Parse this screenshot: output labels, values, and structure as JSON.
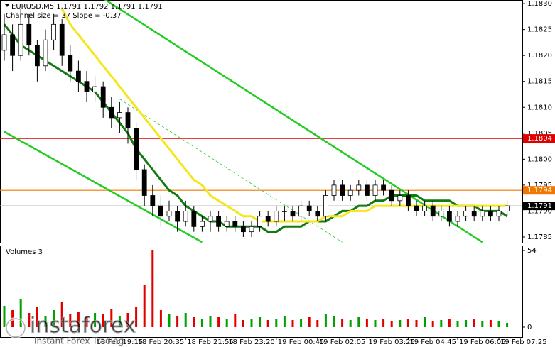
{
  "chart_data": [
    {
      "type": "candlestick",
      "title": "EURUSD,M5  1.1791 1.1792 1.1791 1.1791",
      "subtitle": "Channel size = 37 Slope = -0.37",
      "open": [
        1.1821,
        1.1824,
        1.182,
        1.1826,
        1.1822,
        1.1818,
        1.1823,
        1.1826,
        1.182,
        1.1817,
        1.1815,
        1.1813,
        1.1814,
        1.181,
        1.1808,
        1.1809,
        1.1806,
        1.1798,
        1.1793,
        1.1791,
        1.1789,
        1.179,
        1.1788,
        1.179,
        1.1787,
        1.1788,
        1.1789,
        1.1787,
        1.1788,
        1.1787,
        1.1786,
        1.1787,
        1.1789,
        1.1788,
        1.179,
        1.179,
        1.1789,
        1.1791,
        1.179,
        1.1789,
        1.1793,
        1.1795,
        1.1793,
        1.1794,
        1.1795,
        1.1793,
        1.1795,
        1.1794,
        1.1792,
        1.1793,
        1.1791,
        1.179,
        1.1791,
        1.1789,
        1.179,
        1.1788,
        1.1789,
        1.179,
        1.1789,
        1.179,
        1.1789,
        1.179
      ],
      "high": [
        1.1828,
        1.1826,
        1.1829,
        1.1828,
        1.1823,
        1.1825,
        1.1828,
        1.1827,
        1.1822,
        1.1819,
        1.1817,
        1.1816,
        1.1815,
        1.1812,
        1.1811,
        1.181,
        1.1807,
        1.1799,
        1.1795,
        1.1793,
        1.1792,
        1.1791,
        1.1792,
        1.1791,
        1.1789,
        1.179,
        1.179,
        1.1789,
        1.1789,
        1.1788,
        1.1788,
        1.179,
        1.179,
        1.1791,
        1.1791,
        1.1791,
        1.1792,
        1.1792,
        1.1791,
        1.1794,
        1.1796,
        1.1796,
        1.1795,
        1.1796,
        1.1796,
        1.1796,
        1.1796,
        1.1795,
        1.1794,
        1.1794,
        1.1792,
        1.1792,
        1.1792,
        1.1791,
        1.1791,
        1.179,
        1.1791,
        1.1791,
        1.1791,
        1.1791,
        1.1791,
        1.1792
      ],
      "low": [
        1.1819,
        1.1817,
        1.1819,
        1.182,
        1.1815,
        1.1817,
        1.1821,
        1.1818,
        1.1815,
        1.1813,
        1.1811,
        1.1811,
        1.1808,
        1.1806,
        1.1805,
        1.1803,
        1.1796,
        1.1791,
        1.1789,
        1.1787,
        1.1788,
        1.1786,
        1.1787,
        1.1786,
        1.1786,
        1.1786,
        1.1786,
        1.1786,
        1.1786,
        1.1785,
        1.1785,
        1.1786,
        1.1787,
        1.1787,
        1.1788,
        1.1788,
        1.1788,
        1.1789,
        1.1788,
        1.1788,
        1.1792,
        1.1792,
        1.1792,
        1.1793,
        1.1792,
        1.1792,
        1.1793,
        1.1791,
        1.1791,
        1.179,
        1.1789,
        1.1789,
        1.1788,
        1.1788,
        1.1787,
        1.1787,
        1.1788,
        1.1788,
        1.1788,
        1.1788,
        1.1788,
        1.1789
      ],
      "close": [
        1.1824,
        1.182,
        1.1826,
        1.1822,
        1.1818,
        1.1823,
        1.1826,
        1.182,
        1.1817,
        1.1815,
        1.1813,
        1.1814,
        1.181,
        1.1808,
        1.1809,
        1.1806,
        1.1798,
        1.1793,
        1.1791,
        1.1789,
        1.179,
        1.1788,
        1.179,
        1.1787,
        1.1788,
        1.1789,
        1.1787,
        1.1788,
        1.1787,
        1.1786,
        1.1787,
        1.1789,
        1.1788,
        1.179,
        1.179,
        1.1789,
        1.1791,
        1.179,
        1.1789,
        1.1793,
        1.1795,
        1.1793,
        1.1794,
        1.1795,
        1.1793,
        1.1795,
        1.1794,
        1.1792,
        1.1793,
        1.1791,
        1.179,
        1.1791,
        1.1789,
        1.179,
        1.1788,
        1.1789,
        1.179,
        1.1789,
        1.179,
        1.1789,
        1.179,
        1.1791
      ],
      "up_color": "#00a000",
      "down_color": "#e00000",
      "series": [
        {
          "color": "#107a10",
          "values": [
            1.1826,
            1.1824,
            1.1822,
            1.1821,
            1.182,
            1.1819,
            1.1818,
            1.1817,
            1.1816,
            1.1815,
            1.1814,
            1.1813,
            1.1811,
            1.1809,
            1.1807,
            1.1805,
            1.1802,
            1.18,
            1.1798,
            1.1796,
            1.1794,
            1.1793,
            1.1791,
            1.179,
            1.1789,
            1.1788,
            1.1788,
            1.1787,
            1.1787,
            1.1787,
            1.1787,
            1.1787,
            1.1786,
            1.1786,
            1.1787,
            1.1787,
            1.1787,
            1.1788,
            1.1788,
            1.1788,
            1.1789,
            1.179,
            1.179,
            1.1791,
            1.1791,
            1.1792,
            1.1792,
            1.1793,
            1.1793,
            1.1793,
            1.1793,
            1.1792,
            1.1792,
            1.1792,
            1.1792,
            1.1791,
            1.1791,
            1.1791,
            1.179,
            1.179,
            1.179,
            1.1789
          ]
        },
        {
          "color": "#f5e61a",
          "values": [
            null,
            null,
            null,
            null,
            null,
            null,
            null,
            1.1829,
            1.1826,
            1.1824,
            1.1822,
            1.182,
            1.1818,
            1.1816,
            1.1814,
            1.1812,
            1.181,
            1.1808,
            1.1806,
            1.1804,
            1.1802,
            1.18,
            1.1798,
            1.1796,
            1.1795,
            1.1793,
            1.1792,
            1.1791,
            1.179,
            1.1789,
            1.1789,
            1.1788,
            1.1788,
            1.1788,
            1.1788,
            1.1788,
            1.1788,
            1.1788,
            1.1788,
            1.1789,
            1.1789,
            1.1789,
            1.179,
            1.179,
            1.179,
            1.1791,
            1.1791,
            1.1791,
            1.1791,
            1.1791,
            1.1791,
            1.1791,
            1.1791,
            1.1791,
            1.1791,
            1.1791,
            1.1791,
            1.1791,
            1.1791,
            1.1791,
            1.1791,
            1.1791
          ]
        }
      ],
      "trendlines": [
        {
          "x": [
            12,
            58
          ],
          "values": [
            1.1831,
            1.1784
          ],
          "color": "#22cc22"
        },
        {
          "x": [
            0,
            24
          ],
          "values": [
            1.18053,
            1.1784
          ],
          "color": "#22cc22"
        },
        {
          "x": [
            14,
            41
          ],
          "values": [
            1.18116,
            1.1784
          ],
          "color": "#22cc22",
          "dashed": true
        }
      ],
      "levels": [
        {
          "value": 1.1804,
          "color": "#e00000",
          "box_color": "#e00000"
        },
        {
          "value": 1.1794,
          "color": "#f07800",
          "box_color": "#f07800"
        },
        {
          "value": 1.1791,
          "color": "#b8b8b8",
          "box_color": "#000000"
        }
      ],
      "ylim": [
        1.17839,
        1.18307
      ],
      "yticks": [
        {
          "value": 1.183,
          "label": "1.1830"
        },
        1.1825,
        {
          "value": 1.182,
          "label": "1.1820"
        },
        1.1815,
        {
          "value": 1.181,
          "label": "1.1810"
        },
        1.1805,
        {
          "value": 1.18,
          "label": "1.1800"
        },
        1.1795,
        {
          "value": 1.179,
          "label": "1.1790"
        },
        1.1785
      ]
    },
    {
      "type": "bar",
      "title": "Volumes 3",
      "categories": [
        null,
        null,
        null,
        null,
        null,
        null,
        null,
        null,
        null,
        null,
        null,
        "18 Feb 19:15",
        null,
        null,
        null,
        null,
        "18 Feb 20:35",
        null,
        null,
        null,
        null,
        null,
        "18 Feb 21:55",
        null,
        null,
        null,
        null,
        "18 Feb 23:20",
        null,
        null,
        null,
        null,
        null,
        "19 Feb 00:45",
        null,
        null,
        null,
        null,
        "19 Feb 02:05",
        null,
        null,
        null,
        null,
        null,
        "19 Feb 03:25",
        null,
        null,
        null,
        null,
        "19 Feb 04:45",
        null,
        null,
        null,
        null,
        null,
        "19 Feb 06:05",
        null,
        null,
        null,
        null,
        "19 Feb 07:25",
        null
      ],
      "values": [
        15,
        12,
        20,
        10,
        14,
        8,
        12,
        18,
        9,
        11,
        7,
        10,
        9,
        13,
        8,
        10,
        14,
        30,
        54,
        12,
        9,
        8,
        10,
        7,
        6,
        8,
        7,
        6,
        9,
        5,
        6,
        7,
        5,
        6,
        8,
        5,
        6,
        7,
        5,
        9,
        8,
        6,
        5,
        7,
        6,
        5,
        6,
        4,
        5,
        6,
        5,
        7,
        4,
        5,
        6,
        4,
        5,
        6,
        4,
        5,
        4,
        3
      ],
      "ylim": [
        -7,
        57.5
      ],
      "yticks": [
        0,
        54
      ]
    }
  ],
  "watermark": {
    "brand": "instaforex",
    "tagline": "Instant Forex Trading"
  }
}
